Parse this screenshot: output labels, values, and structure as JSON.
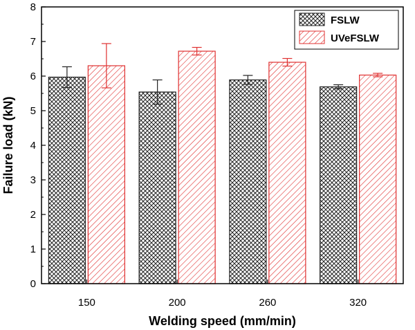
{
  "chart_data": {
    "type": "bar",
    "title": "",
    "xlabel": "Welding speed (mm/min)",
    "ylabel": "Failure load (kN)",
    "categories": [
      "150",
      "200",
      "260",
      "320"
    ],
    "ylim": [
      0,
      8
    ],
    "yticks": [
      "0",
      "1",
      "2",
      "3",
      "4",
      "5",
      "6",
      "7",
      "8"
    ],
    "grid": false,
    "legend_position": "top-right",
    "series": [
      {
        "name": "FSLW",
        "values": [
          5.97,
          5.54,
          5.89,
          5.69
        ],
        "errors": [
          0.3,
          0.35,
          0.13,
          0.06
        ],
        "color": "#333333",
        "pattern": "crosshatch"
      },
      {
        "name": "UVeFSLW",
        "values": [
          6.3,
          6.72,
          6.4,
          6.03
        ],
        "errors": [
          0.64,
          0.11,
          0.11,
          0.05
        ],
        "color": "#e03030",
        "pattern": "diagonal"
      }
    ]
  }
}
